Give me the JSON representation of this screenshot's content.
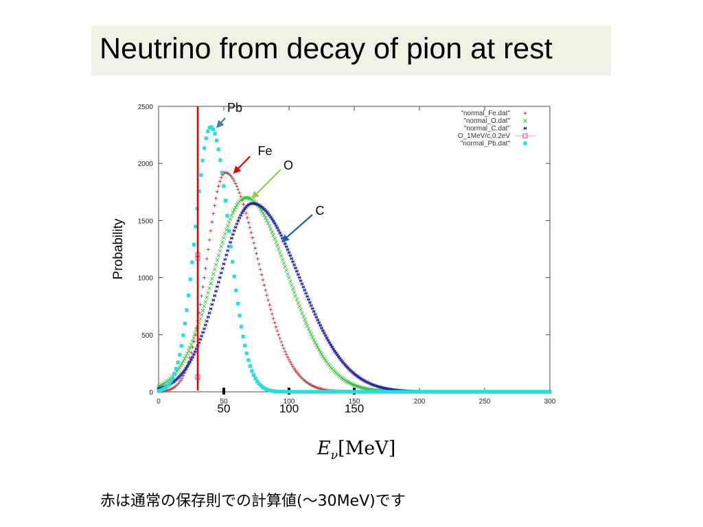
{
  "slide": {
    "title": "Neutrino from decay of pion at rest",
    "note": "赤は通常の保存則での計算値(〜30MeV)です"
  },
  "chart_data": {
    "type": "scatter",
    "xlim": [
      0,
      300
    ],
    "ylim": [
      0,
      2500
    ],
    "x_ticks": [
      0,
      50,
      100,
      150,
      200,
      250,
      300
    ],
    "y_ticks": [
      0,
      500,
      1000,
      1500,
      2000,
      2500
    ],
    "ylabel": "Probability",
    "xlabel_main": "E",
    "xlabel_sub": "ν",
    "xlabel_rest": "[MeV]",
    "extra_x_labels": [
      {
        "value": 50,
        "text": "50"
      },
      {
        "value": 100,
        "text": "100"
      },
      {
        "value": 150,
        "text": "150"
      }
    ],
    "vertical_line": {
      "x": 30,
      "color": "#e00000"
    },
    "legend_position": "top-right",
    "series": [
      {
        "name": "\"normal_Fe.dat\"",
        "marker": "+",
        "color": "#b03030",
        "peak_x": 51,
        "peak_y": 1920,
        "sigma_left": 14,
        "sigma_right": 25
      },
      {
        "name": "\"normal_O.dat\"",
        "marker": "x",
        "color": "#30c030",
        "peak_x": 67,
        "peak_y": 1700,
        "sigma_left": 25,
        "sigma_right": 32
      },
      {
        "name": "\"normal_C.dat\"",
        "marker": "*",
        "color": "#2020a0",
        "peak_x": 72,
        "peak_y": 1650,
        "sigma_left": 25,
        "sigma_right": 36
      },
      {
        "name": "O_1MeV/c,0.2eV",
        "marker": "square-open",
        "color": "#d040a0",
        "x": [
          30,
          30,
          30
        ],
        "y": [
          130,
          1170,
          1200
        ]
      },
      {
        "name": "\"normal_Pb.dat\"",
        "marker": "square",
        "color": "#20e0e0",
        "peak_x": 40,
        "peak_y": 2320,
        "sigma_left": 12,
        "sigma_right": 14
      }
    ],
    "annotations": [
      {
        "text": "Pb",
        "color": "#4a7aa0",
        "target_x": 45,
        "target_y": 2320
      },
      {
        "text": "Fe",
        "color": "#e00000",
        "target_x": 58,
        "target_y": 1920
      },
      {
        "text": "O",
        "color": "#90d050",
        "target_x": 72,
        "target_y": 1700
      },
      {
        "text": "C",
        "color": "#1060b0",
        "target_x": 95,
        "target_y": 1320
      }
    ]
  }
}
